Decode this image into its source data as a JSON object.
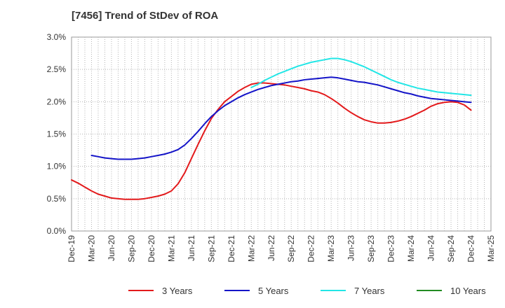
{
  "title": "[7456]  Trend of StDev of ROA",
  "chart_data": {
    "type": "line",
    "title": "[7456]  Trend of StDev of ROA",
    "xlabel": "",
    "ylabel": "",
    "x_ticks": [
      "Dec-19",
      "Mar-20",
      "Jun-20",
      "Sep-20",
      "Dec-20",
      "Mar-21",
      "Jun-21",
      "Sep-21",
      "Dec-21",
      "Mar-22",
      "Jun-22",
      "Sep-22",
      "Dec-22",
      "Mar-23",
      "Jun-23",
      "Sep-23",
      "Dec-23",
      "Mar-24",
      "Jun-24",
      "Sep-24",
      "Dec-24",
      "Mar-25"
    ],
    "y_ticks": [
      "0.0%",
      "0.5%",
      "1.0%",
      "1.5%",
      "2.0%",
      "2.5%",
      "3.0%"
    ],
    "ylim": [
      0,
      3.0
    ],
    "grid": true,
    "legend_position": "bottom",
    "series": [
      {
        "name": "3 Years",
        "color": "#e31a1c",
        "x": [
          "Dec-19",
          "Jan-20",
          "Feb-20",
          "Mar-20",
          "Apr-20",
          "May-20",
          "Jun-20",
          "Jul-20",
          "Aug-20",
          "Sep-20",
          "Oct-20",
          "Nov-20",
          "Dec-20",
          "Jan-21",
          "Feb-21",
          "Mar-21",
          "Apr-21",
          "May-21",
          "Jun-21",
          "Jul-21",
          "Aug-21",
          "Sep-21",
          "Oct-21",
          "Nov-21",
          "Dec-21",
          "Jan-22",
          "Feb-22",
          "Mar-22",
          "Apr-22",
          "May-22",
          "Jun-22",
          "Jul-22",
          "Aug-22",
          "Sep-22",
          "Oct-22",
          "Nov-22",
          "Dec-22",
          "Jan-23",
          "Feb-23",
          "Mar-23",
          "Apr-23",
          "May-23",
          "Jun-23",
          "Jul-23",
          "Aug-23",
          "Sep-23",
          "Oct-23",
          "Nov-23",
          "Dec-23",
          "Jan-24",
          "Feb-24",
          "Mar-24",
          "Apr-24",
          "May-24",
          "Jun-24",
          "Jul-24",
          "Aug-24",
          "Sep-24",
          "Oct-24",
          "Nov-24",
          "Dec-24"
        ],
        "values": [
          0.79,
          0.74,
          0.68,
          0.62,
          0.57,
          0.54,
          0.51,
          0.5,
          0.49,
          0.49,
          0.49,
          0.5,
          0.52,
          0.54,
          0.57,
          0.62,
          0.73,
          0.9,
          1.12,
          1.34,
          1.55,
          1.74,
          1.88,
          2.0,
          2.08,
          2.16,
          2.22,
          2.27,
          2.29,
          2.29,
          2.28,
          2.27,
          2.26,
          2.24,
          2.22,
          2.2,
          2.17,
          2.15,
          2.11,
          2.05,
          1.98,
          1.9,
          1.83,
          1.77,
          1.72,
          1.69,
          1.67,
          1.67,
          1.68,
          1.7,
          1.73,
          1.77,
          1.82,
          1.87,
          1.93,
          1.97,
          1.99,
          2.0,
          1.99,
          1.95,
          1.87
        ]
      },
      {
        "name": "5 Years",
        "color": "#1414c8",
        "x": [
          "Mar-20",
          "Apr-20",
          "May-20",
          "Jun-20",
          "Jul-20",
          "Aug-20",
          "Sep-20",
          "Oct-20",
          "Nov-20",
          "Dec-20",
          "Jan-21",
          "Feb-21",
          "Mar-21",
          "Apr-21",
          "May-21",
          "Jun-21",
          "Jul-21",
          "Aug-21",
          "Sep-21",
          "Oct-21",
          "Nov-21",
          "Dec-21",
          "Jan-22",
          "Feb-22",
          "Mar-22",
          "Apr-22",
          "May-22",
          "Jun-22",
          "Jul-22",
          "Aug-22",
          "Sep-22",
          "Oct-22",
          "Nov-22",
          "Dec-22",
          "Jan-23",
          "Feb-23",
          "Mar-23",
          "Apr-23",
          "May-23",
          "Jun-23",
          "Jul-23",
          "Aug-23",
          "Sep-23",
          "Oct-23",
          "Nov-23",
          "Dec-23",
          "Jan-24",
          "Feb-24",
          "Mar-24",
          "Apr-24",
          "May-24",
          "Jun-24",
          "Jul-24",
          "Aug-24",
          "Sep-24",
          "Oct-24",
          "Nov-24",
          "Dec-24"
        ],
        "values": [
          1.17,
          1.15,
          1.13,
          1.12,
          1.11,
          1.11,
          1.11,
          1.12,
          1.13,
          1.15,
          1.17,
          1.19,
          1.22,
          1.26,
          1.33,
          1.43,
          1.54,
          1.66,
          1.77,
          1.86,
          1.94,
          2.0,
          2.06,
          2.11,
          2.15,
          2.19,
          2.22,
          2.25,
          2.27,
          2.29,
          2.31,
          2.32,
          2.34,
          2.35,
          2.36,
          2.37,
          2.38,
          2.37,
          2.35,
          2.33,
          2.31,
          2.3,
          2.28,
          2.26,
          2.23,
          2.2,
          2.17,
          2.14,
          2.12,
          2.09,
          2.07,
          2.05,
          2.04,
          2.03,
          2.02,
          2.01,
          2.0,
          1.99
        ]
      },
      {
        "name": "7 Years",
        "color": "#22e6e6",
        "x": [
          "Mar-22",
          "Apr-22",
          "May-22",
          "Jun-22",
          "Jul-22",
          "Aug-22",
          "Sep-22",
          "Oct-22",
          "Nov-22",
          "Dec-22",
          "Jan-23",
          "Feb-23",
          "Mar-23",
          "Apr-23",
          "May-23",
          "Jun-23",
          "Jul-23",
          "Aug-23",
          "Sep-23",
          "Oct-23",
          "Nov-23",
          "Dec-23",
          "Jan-24",
          "Feb-24",
          "Mar-24",
          "Apr-24",
          "May-24",
          "Jun-24",
          "Jul-24",
          "Aug-24",
          "Sep-24",
          "Oct-24",
          "Nov-24",
          "Dec-24"
        ],
        "values": [
          2.22,
          2.27,
          2.33,
          2.38,
          2.43,
          2.47,
          2.51,
          2.55,
          2.58,
          2.61,
          2.63,
          2.65,
          2.67,
          2.67,
          2.65,
          2.62,
          2.58,
          2.54,
          2.49,
          2.44,
          2.39,
          2.34,
          2.3,
          2.27,
          2.24,
          2.21,
          2.19,
          2.17,
          2.15,
          2.14,
          2.13,
          2.12,
          2.11,
          2.1
        ]
      },
      {
        "name": "10 Years",
        "color": "#228b22",
        "x": [],
        "values": []
      }
    ]
  }
}
